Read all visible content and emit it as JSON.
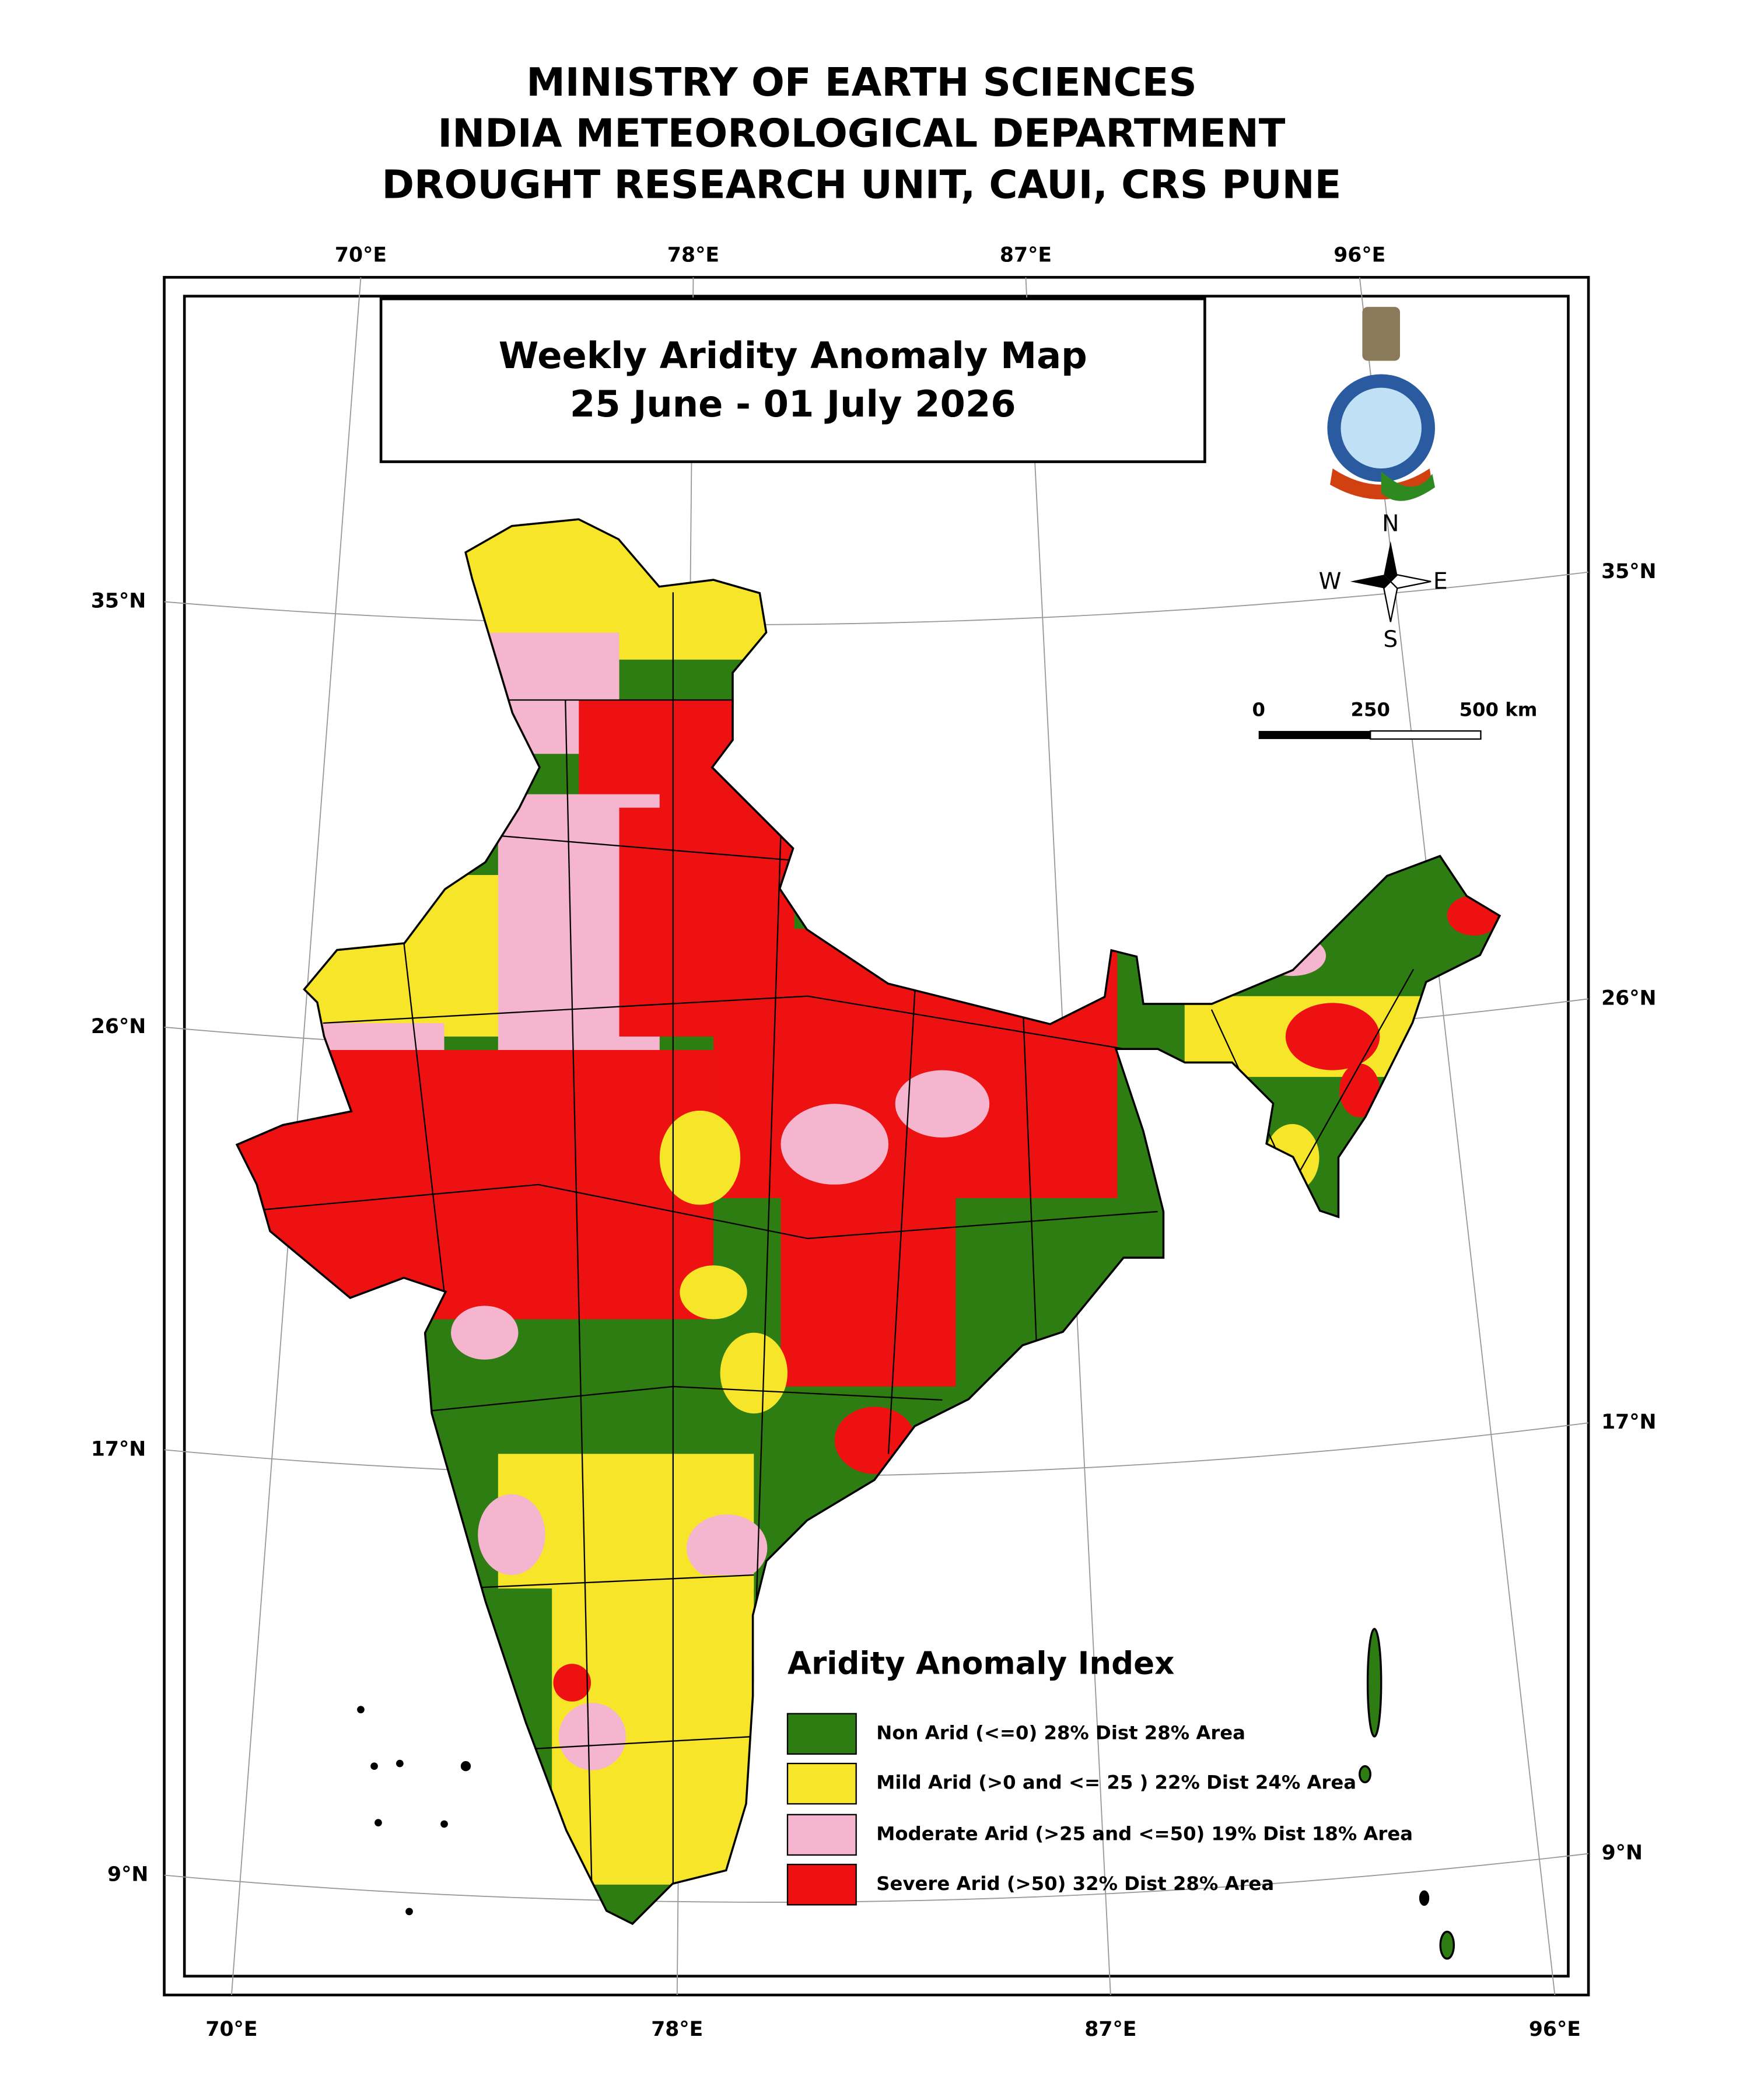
{
  "header": {
    "lines": [
      "MINISTRY OF EARTH SCIENCES",
      "INDIA METEOROLOGICAL DEPARTMENT",
      "DROUGHT RESEARCH UNIT, CAUI, CRS PUNE"
    ]
  },
  "map": {
    "title": [
      "Weekly Aridity Anomaly Map",
      "25 June - 01 July 2026"
    ],
    "graticule": {
      "top": [
        "70°E",
        "78°E",
        "87°E",
        "96°E"
      ],
      "bottom": [
        "70°E",
        "78°E",
        "87°E",
        "96°E"
      ],
      "left": [
        "35°N",
        "26°N",
        "17°N",
        "9°N"
      ],
      "right": [
        "35°N",
        "26°N",
        "17°N",
        "9°N"
      ]
    },
    "compass": {
      "n": "N",
      "e": "E",
      "s": "S",
      "w": "W"
    },
    "scale_bar": {
      "labels": [
        "0",
        "250",
        "500 km"
      ]
    },
    "legend": {
      "title": "Aridity Anomaly Index",
      "items": [
        {
          "label": "Non Arid (<=0) 28% Dist 28% Area",
          "color": "#2e7d12"
        },
        {
          "label": "Mild Arid (>0 and <= 25 ) 22% Dist  24% Area",
          "color": "#f7e52a"
        },
        {
          "label": "Moderate Arid (>25 and <=50) 19% Dist 18% Area",
          "color": "#f5b5cf"
        },
        {
          "label": "Severe Arid (>50) 32% Dist  28% Area",
          "color": "#ee1111"
        }
      ]
    }
  }
}
